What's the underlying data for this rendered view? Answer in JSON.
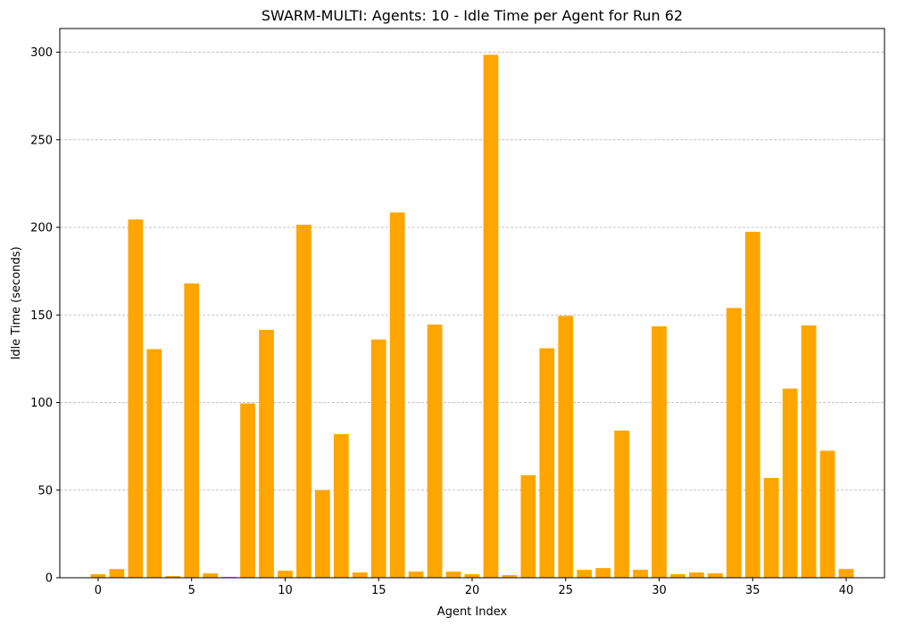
{
  "chart_data": {
    "type": "bar",
    "title": "SWARM-MULTI: Agents: 10 - Idle Time per Agent for Run 62",
    "xlabel": "Agent Index",
    "ylabel": "Idle Time (seconds)",
    "xlim": [
      -2.05,
      42.05
    ],
    "ylim": [
      0,
      313.5
    ],
    "xticks": [
      0,
      5,
      10,
      15,
      20,
      25,
      30,
      35,
      40
    ],
    "yticks": [
      0,
      50,
      100,
      150,
      200,
      250,
      300
    ],
    "grid": "y-dashed",
    "bar_color": "#ffa500",
    "categories": [
      0,
      1,
      2,
      3,
      4,
      5,
      6,
      7,
      8,
      9,
      10,
      11,
      12,
      13,
      14,
      15,
      16,
      17,
      18,
      19,
      20,
      21,
      22,
      23,
      24,
      25,
      26,
      27,
      28,
      29,
      30,
      31,
      32,
      33,
      34,
      35,
      36,
      37,
      38,
      39,
      40
    ],
    "values": [
      2,
      5,
      204.5,
      130.5,
      1,
      168,
      2.5,
      0.5,
      99.5,
      141.5,
      4,
      201.5,
      50,
      82,
      3,
      136,
      208.5,
      3.5,
      144.5,
      3.5,
      2,
      298.5,
      1.5,
      58.5,
      131,
      149.5,
      4.5,
      5.5,
      84,
      4.5,
      143.5,
      2,
      3,
      2.5,
      154,
      197.5,
      57,
      108,
      144,
      72.5,
      5
    ]
  }
}
